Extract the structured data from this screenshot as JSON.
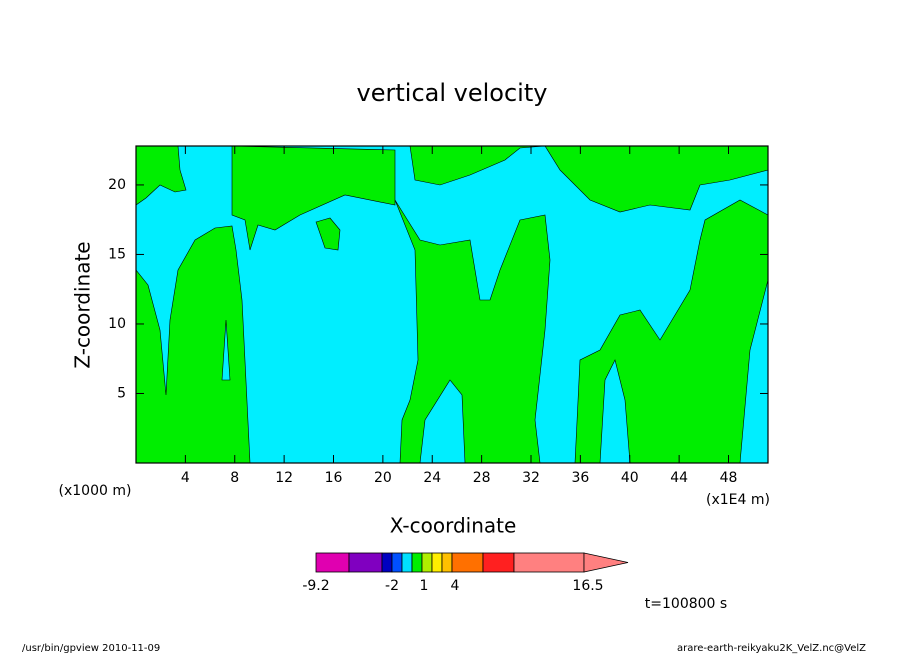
{
  "chart_data": {
    "type": "contour",
    "title": "vertical velocity",
    "xlabel": "X-coordinate",
    "ylabel": "Z-coordinate",
    "xunit": "(x1E4 m)",
    "yunit": "(x1000 m)",
    "xlim": [
      0,
      51.2
    ],
    "ylim": [
      0,
      22.8
    ],
    "xticks": [
      4,
      8,
      12,
      16,
      20,
      24,
      28,
      32,
      36,
      40,
      44,
      48
    ],
    "yticks": [
      5,
      10,
      15,
      20
    ],
    "fill_colors": [
      "#00eeff",
      "#00ee00"
    ],
    "colorbar_colors": [
      "#e000b0",
      "#8000c0",
      "#0000c0",
      "#0050ff",
      "#00e0ff",
      "#00ee00",
      "#b0ee00",
      "#ffee00",
      "#ffc000",
      "#ff7000",
      "#ff2020",
      "#ff8080"
    ],
    "colorbar_labels": [
      -9.2,
      -2,
      1,
      4,
      16.5
    ],
    "time_label": "t=100800 s"
  },
  "footer": {
    "left": "/usr/bin/gpview  2010-11-09",
    "right": "arare-earth-reikyaku2K_VelZ.nc@VelZ"
  }
}
